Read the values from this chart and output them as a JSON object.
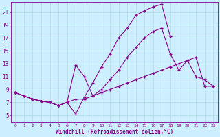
{
  "background_color": "#cceeff",
  "grid_color": "#b0dede",
  "line_color": "#880088",
  "marker": "+",
  "xlabel": "Windchill (Refroidissement éolien,°C)",
  "xlabel_color": "#880088",
  "tick_color": "#880088",
  "xlim": [
    -0.5,
    23.5
  ],
  "ylim": [
    4,
    22.5
  ],
  "yticks": [
    5,
    7,
    9,
    11,
    13,
    15,
    17,
    19,
    21
  ],
  "xticks": [
    0,
    1,
    2,
    3,
    4,
    5,
    6,
    7,
    8,
    9,
    10,
    11,
    12,
    13,
    14,
    15,
    16,
    17,
    18,
    19,
    20,
    21,
    22,
    23
  ],
  "curve_top_x": [
    0,
    1,
    2,
    3,
    4,
    5,
    6,
    7,
    8,
    9,
    10,
    11,
    12,
    13,
    14,
    15,
    16,
    17,
    18
  ],
  "curve_top_y": [
    8.5,
    8.0,
    7.5,
    7.2,
    7.0,
    6.5,
    7.0,
    5.2,
    7.8,
    10.0,
    12.5,
    14.5,
    17.0,
    18.5,
    20.5,
    21.2,
    21.8,
    22.2,
    17.2
  ],
  "curve_mid_x": [
    0,
    1,
    2,
    3,
    4,
    5,
    6,
    7,
    8,
    9,
    10,
    11,
    12,
    13,
    14,
    15,
    16,
    17,
    18,
    19,
    20,
    21,
    22,
    23
  ],
  "curve_mid_y": [
    8.5,
    8.0,
    7.5,
    7.2,
    7.0,
    6.5,
    7.0,
    12.8,
    11.0,
    8.0,
    9.0,
    10.5,
    12.0,
    14.0,
    15.5,
    17.0,
    18.0,
    18.5,
    14.5,
    12.0,
    13.5,
    11.0,
    10.5,
    9.5
  ],
  "curve_bot_x": [
    0,
    1,
    2,
    3,
    4,
    5,
    6,
    7,
    8,
    9,
    10,
    11,
    12,
    13,
    14,
    15,
    16,
    17,
    18,
    19,
    20,
    21,
    22,
    23
  ],
  "curve_bot_y": [
    8.5,
    8.0,
    7.5,
    7.2,
    7.0,
    6.5,
    7.0,
    7.5,
    7.5,
    8.0,
    8.5,
    9.0,
    9.5,
    10.0,
    10.5,
    11.0,
    11.5,
    12.0,
    12.5,
    13.0,
    13.5,
    14.0,
    9.5,
    9.5
  ]
}
